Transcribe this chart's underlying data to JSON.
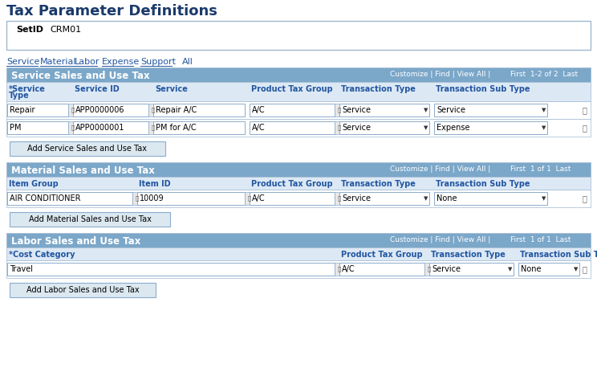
{
  "title": "Tax Parameter Definitions",
  "setid_label": "SetID",
  "setid_value": "CRM01",
  "nav_links": [
    "Service",
    "Material",
    "Labor",
    "Expense",
    "Support",
    "All"
  ],
  "bg_color": "#ffffff",
  "header_bg": "#7ba7c9",
  "subheader_bg": "#dce9f5",
  "col_header_color": "#2255a0",
  "title_color": "#1a3a6b",
  "nav_color": "#2255a0",
  "row_bg": "#ffffff",
  "border_color": "#a0b8d0",
  "button_bg": "#dce8f0",
  "button_border": "#8aaccc",
  "s1_title": "Service Sales and Use Tax",
  "s1_pagination": "First  1-2 of 2  Last",
  "s1_headers": [
    "*Service\nType",
    "Service ID",
    "Service",
    "Product Tax Group",
    "Transaction Type",
    "Transaction Sub Type"
  ],
  "s1_rows": [
    [
      "Repair",
      "APP0000006",
      "Repair A/C",
      "A/C",
      "Service",
      "Service"
    ],
    [
      "PM",
      "APP0000001",
      "PM for A/C",
      "A/C",
      "Service",
      "Expense"
    ]
  ],
  "s1_button": "Add Service Sales and Use Tax",
  "s2_title": "Material Sales and Use Tax",
  "s2_pagination": "First  1 of 1  Last",
  "s2_headers": [
    "Item Group",
    "Item ID",
    "Product Tax Group",
    "Transaction Type",
    "Transaction Sub Type"
  ],
  "s2_rows": [
    [
      "AIR CONDITIONER",
      "10009",
      "A/C",
      "Service",
      "None"
    ]
  ],
  "s2_button": "Add Material Sales and Use Tax",
  "s3_title": "Labor Sales and Use Tax",
  "s3_pagination": "First  1 of 1  Last",
  "s3_headers": [
    "*Cost Category",
    "Product Tax Group",
    "Transaction Type",
    "Transaction Sub Type"
  ],
  "s3_rows": [
    [
      "Travel",
      "A/C",
      "Service",
      "None"
    ]
  ],
  "s3_button": "Add Labor Sales and Use Tax"
}
